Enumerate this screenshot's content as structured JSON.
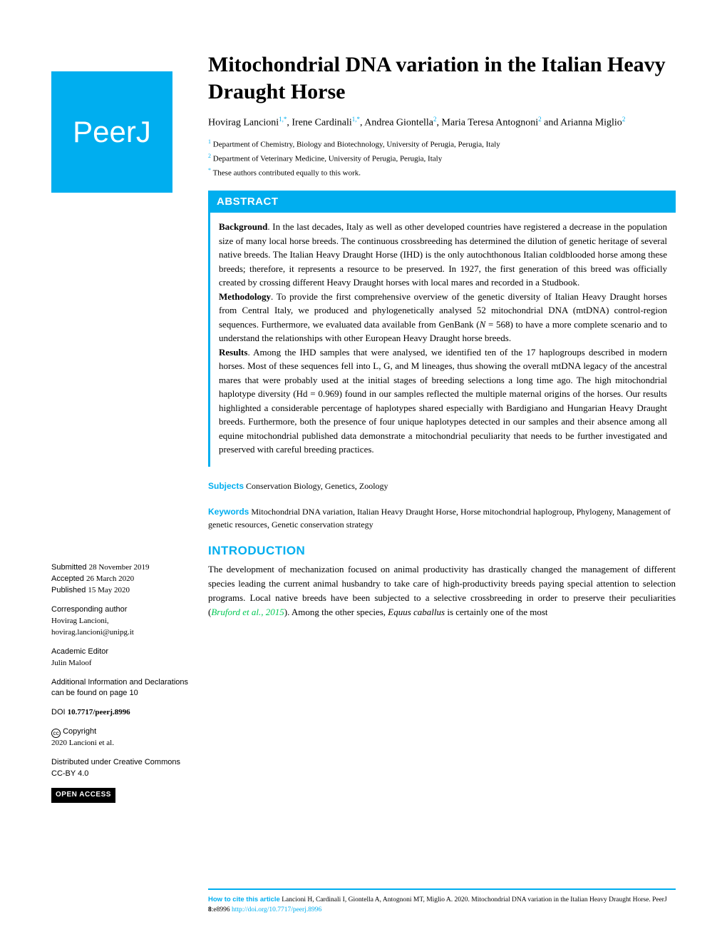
{
  "logo": "PeerJ",
  "title": "Mitochondrial DNA variation in the Italian Heavy Draught Horse",
  "authors_html": "Hovirag Lancioni<sup>1,*</sup>,  Irene Cardinali<sup>1,*</sup>,  Andrea Giontella<sup>2</sup>,  Maria Teresa Antognoni<sup>2</sup> and  Arianna Miglio<sup>2</sup>",
  "affiliations": [
    {
      "num": "1",
      "text": "Department of Chemistry, Biology and Biotechnology, University of Perugia, Perugia, Italy"
    },
    {
      "num": "2",
      "text": "Department of Veterinary Medicine, University of Perugia, Perugia, Italy"
    }
  ],
  "equal_note": {
    "sym": "*",
    "text": "These authors contributed equally to this work."
  },
  "abstract": {
    "header": "ABSTRACT",
    "background_label": "Background",
    "background": ". In the last decades, Italy as well as other developed countries have registered a decrease in the population size of many local horse breeds. The continuous crossbreeding has determined the dilution of genetic heritage of several native breeds. The Italian Heavy Draught Horse (IHD) is the only autochthonous Italian coldblooded horse among these breeds; therefore, it represents a resource to be preserved. In 1927, the first generation of this breed was officially created by crossing different Heavy Draught horses with local mares and recorded in a Studbook.",
    "methodology_label": "Methodology",
    "methodology": ". To provide the first comprehensive overview of the genetic diversity of Italian Heavy Draught horses from Central Italy, we produced and phylogenetically analysed 52 mitochondrial DNA (mtDNA) control-region sequences. Furthermore, we evaluated data available from GenBank (N = 568) to have a more complete scenario and to understand the relationships with other European Heavy Draught horse breeds.",
    "results_label": "Results",
    "results": ". Among the IHD samples that were analysed, we identified ten of the 17 haplogroups described in modern horses. Most of these sequences fell into L, G, and M lineages, thus showing the overall mtDNA legacy of the ancestral mares that were probably used at the initial stages of breeding selections a long time ago. The high mitochondrial haplotype diversity (Hd = 0.969) found in our samples reflected the multiple maternal origins of the horses. Our results highlighted a considerable percentage of haplotypes shared especially with Bardigiano and Hungarian Heavy Draught breeds. Furthermore, both the presence of four unique haplotypes detected in our samples and their absence among all equine mitochondrial published data demonstrate a mitochondrial peculiarity that needs to be further investigated and preserved with careful breeding practices."
  },
  "subjects": {
    "label": "Subjects",
    "text": "Conservation Biology, Genetics, Zoology"
  },
  "keywords": {
    "label": "Keywords",
    "text": "Mitochondrial DNA variation, Italian Heavy Draught Horse, Horse mitochondrial haplogroup, Phylogeny, Management of genetic resources, Genetic conservation strategy"
  },
  "intro": {
    "header": "INTRODUCTION",
    "text_pre": "The development of mechanization focused on animal productivity has drastically changed the management of different species leading the current animal husbandry to take care of high-productivity breeds paying special attention to selection programs. Local native breeds have been subjected to a selective crossbreeding in order to preserve their peculiarities (",
    "ref": "Bruford et al., 2015",
    "text_post": "). Among the other species, Equus caballus is certainly one of the most"
  },
  "sidebar": {
    "submitted": {
      "label": "Submitted",
      "date": "28 November 2019"
    },
    "accepted": {
      "label": "Accepted",
      "date": "26 March 2020"
    },
    "published": {
      "label": "Published",
      "date": "15 May 2020"
    },
    "corr_label": "Corresponding author",
    "corr_name": "Hovirag Lancioni,",
    "corr_email": "hovirag.lancioni@unipg.it",
    "editor_label": "Academic Editor",
    "editor_name": "Julin Maloof",
    "addl": "Additional Information and Declarations can be found on page 10",
    "doi_label": "DOI",
    "doi": "10.7717/peerj.8996",
    "copyright_label": "Copyright",
    "copyright": "2020 Lancioni et al.",
    "dist": "Distributed under Creative Commons CC-BY 4.0",
    "open_access": "OPEN ACCESS"
  },
  "footer": {
    "label": "How to cite this article",
    "text": "Lancioni H, Cardinali I, Giontella A, Antognoni MT, Miglio A. 2020. Mitochondrial DNA variation in the Italian Heavy Draught Horse. PeerJ 8:e8996 ",
    "link": "http://doi.org/10.7717/peerj.8996"
  }
}
